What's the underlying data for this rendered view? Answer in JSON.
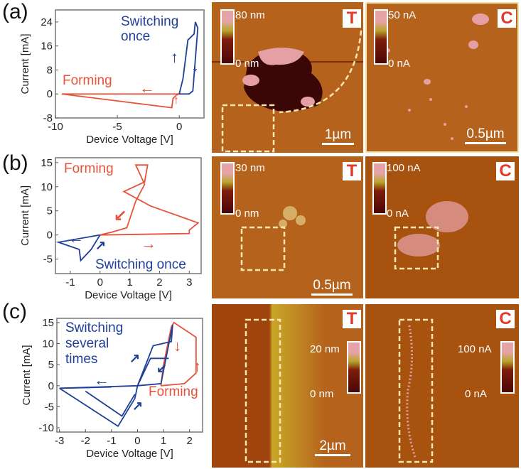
{
  "panels": [
    {
      "label": "(a)",
      "switch_label": "Switching once",
      "forming_label": "Forming",
      "topo": {
        "badge": "T",
        "cmax": "80 nm",
        "cmin": "0 nm",
        "scale": "1µm"
      },
      "current": {
        "badge": "C",
        "cmax": "50 nA",
        "cmin": "0 nA",
        "scale": "0.5µm"
      }
    },
    {
      "label": "(b)",
      "switch_label": "Switching once",
      "forming_label": "Forming",
      "topo": {
        "badge": "T",
        "cmax": "30 nm",
        "cmin": "0 nm",
        "scale": "0.5µm"
      },
      "current": {
        "badge": "C",
        "cmax": "100 nA",
        "cmin": "0 nA"
      }
    },
    {
      "label": "(c)",
      "switch_label": "Switching several times",
      "forming_label": "Forming",
      "topo": {
        "badge": "T",
        "cmax": "20 nm",
        "cmin": "0 nm",
        "scale": "2µm"
      },
      "current": {
        "badge": "C",
        "cmax": "100 nA",
        "cmin": "0 nA"
      }
    }
  ],
  "colors": {
    "forming": "#e8523a",
    "switching": "#1f3f98",
    "afm_bg": "#b5621c"
  },
  "chart_data": [
    {
      "type": "line",
      "title": "(a)",
      "xlabel": "Device Voltage [V]",
      "ylabel": "Current [mA]",
      "xlim": [
        -10,
        2
      ],
      "ylim": [
        -8,
        28
      ],
      "xticks": [
        -10,
        -5,
        0
      ],
      "yticks": [
        -8,
        0,
        8,
        16,
        24
      ],
      "series": [
        {
          "name": "Forming",
          "color": "#e8523a",
          "segments": [
            [
              [
                0.2,
                0
              ],
              [
                -9.5,
                0
              ],
              [
                -0.6,
                -4.6
              ],
              [
                -0.5,
                -1.5
              ],
              [
                -0.2,
                -0.3
              ],
              [
                0,
                0
              ]
            ]
          ]
        },
        {
          "name": "Switching once",
          "color": "#1f3f98",
          "segments": [
            [
              [
                0,
                0
              ],
              [
                0.3,
                5
              ],
              [
                0.7,
                18
              ],
              [
                1.2,
                20
              ],
              [
                1.3,
                24
              ],
              [
                1.5,
                22
              ],
              [
                1.1,
                1
              ],
              [
                0.8,
                0
              ],
              [
                0,
                0
              ]
            ]
          ]
        }
      ]
    },
    {
      "type": "line",
      "title": "(b)",
      "xlabel": "Device Voltage [V]",
      "ylabel": "Current [mA]",
      "xlim": [
        -1.5,
        3.4
      ],
      "ylim": [
        -8,
        16
      ],
      "xticks": [
        -1,
        0,
        1,
        2,
        3
      ],
      "yticks": [
        -5,
        0,
        5,
        10,
        15
      ],
      "series": [
        {
          "name": "Forming",
          "color": "#e8523a",
          "segments": [
            [
              [
                0,
                0
              ],
              [
                3,
                0.3
              ],
              [
                3,
                1
              ],
              [
                3.3,
                2.5
              ],
              [
                1.7,
                6
              ],
              [
                0.8,
                9
              ],
              [
                1.5,
                11
              ],
              [
                1.6,
                14.5
              ],
              [
                1.2,
                14.5
              ],
              [
                1.5,
                10.5
              ],
              [
                1.2,
                7
              ],
              [
                0.9,
                1.5
              ],
              [
                0.4,
                0.6
              ],
              [
                0,
                0
              ]
            ]
          ]
        },
        {
          "name": "Switching once",
          "color": "#1f3f98",
          "segments": [
            [
              [
                0,
                0
              ],
              [
                -1.4,
                -1.5
              ],
              [
                -0.7,
                -3
              ],
              [
                -0.65,
                -5.3
              ],
              [
                -0.3,
                -3
              ],
              [
                0,
                0
              ]
            ]
          ]
        }
      ]
    },
    {
      "type": "line",
      "title": "(c)",
      "xlabel": "Device Voltage [V]",
      "ylabel": "Current [mA]",
      "xlim": [
        -3.1,
        2.5
      ],
      "ylim": [
        -11,
        16
      ],
      "xticks": [
        -3,
        -2,
        -1,
        0,
        1,
        2
      ],
      "yticks": [
        -10,
        -5,
        0,
        5,
        10,
        15
      ],
      "series": [
        {
          "name": "Forming",
          "color": "#e8523a",
          "segments": [
            [
              [
                0.9,
                0
              ],
              [
                1.8,
                0.5
              ],
              [
                2.25,
                3
              ],
              [
                2.25,
                11.5
              ],
              [
                1.4,
                15
              ],
              [
                1.3,
                14
              ],
              [
                1.0,
                5
              ],
              [
                0.9,
                0
              ]
            ]
          ]
        },
        {
          "name": "Switching several times",
          "color": "#1f3f98",
          "segments": [
            [
              [
                -3,
                -0.6
              ],
              [
                0,
                0
              ],
              [
                0.6,
                9.5
              ],
              [
                1.3,
                10.5
              ],
              [
                1.35,
                14.5
              ],
              [
                0.9,
                0.5
              ],
              [
                0,
                0
              ]
            ],
            [
              [
                0,
                0
              ],
              [
                0.5,
                6.5
              ],
              [
                1.2,
                6.5
              ]
            ],
            [
              [
                -3,
                -0.6
              ],
              [
                -0.75,
                -9.6
              ],
              [
                -0.1,
                -3
              ],
              [
                0,
                0
              ]
            ],
            [
              [
                -2,
                -1.3
              ],
              [
                -0.6,
                -7.2
              ],
              [
                -0.1,
                -2
              ]
            ],
            [
              [
                -1,
                -0.3
              ],
              [
                -3,
                -0.6
              ]
            ]
          ]
        }
      ]
    }
  ]
}
